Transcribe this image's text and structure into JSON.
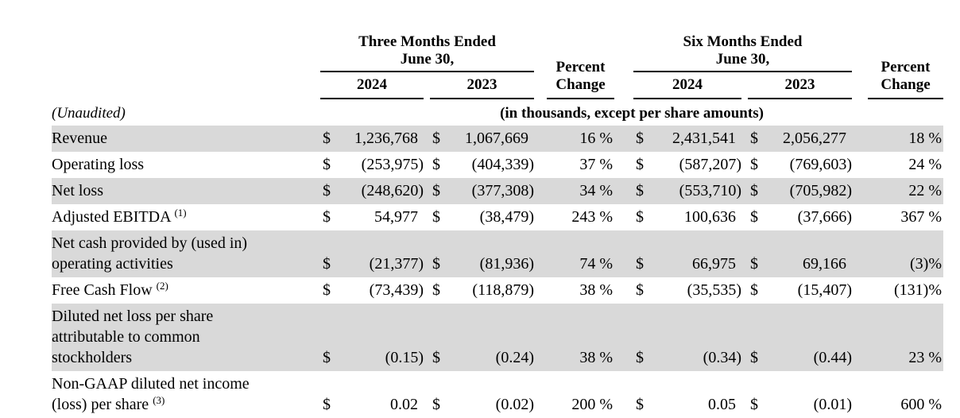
{
  "currency": "$",
  "meta": {
    "unaudited": "(Unaudited)",
    "units_note": "(in thousands, except per share amounts)"
  },
  "header": {
    "groups": [
      {
        "title": "Three Months Ended\nJune 30,",
        "year1": "2024",
        "year2": "2023",
        "pct": "Percent\nChange"
      },
      {
        "title": "Six Months Ended\nJune 30,",
        "year1": "2024",
        "year2": "2023",
        "pct": "Percent\nChange"
      }
    ]
  },
  "rows": [
    {
      "label": "Revenue",
      "sup": "",
      "tm2024": "1,236,768",
      "tm2023": "1,067,669",
      "tmpct": "16 %",
      "sm2024": "2,431,541",
      "sm2023": "2,056,277",
      "smpct": "18 %"
    },
    {
      "label": "Operating loss",
      "sup": "",
      "tm2024": "(253,975)",
      "tm2023": "(404,339)",
      "tmpct": "37 %",
      "sm2024": "(587,207)",
      "sm2023": "(769,603)",
      "smpct": "24 %"
    },
    {
      "label": "Net loss",
      "sup": "",
      "tm2024": "(248,620)",
      "tm2023": "(377,308)",
      "tmpct": "34 %",
      "sm2024": "(553,710)",
      "sm2023": "(705,982)",
      "smpct": "22 %"
    },
    {
      "label": "Adjusted EBITDA",
      "sup": "(1)",
      "tm2024": "54,977",
      "tm2023": "(38,479)",
      "tmpct": "243 %",
      "sm2024": "100,636",
      "sm2023": "(37,666)",
      "smpct": "367 %"
    },
    {
      "label": "Net cash provided by (used in)\noperating activities",
      "sup": "",
      "tm2024": "(21,377)",
      "tm2023": "(81,936)",
      "tmpct": "74 %",
      "sm2024": "66,975",
      "sm2023": "69,166",
      "smpct": "(3)%"
    },
    {
      "label": "Free Cash Flow",
      "sup": "(2)",
      "tm2024": "(73,439)",
      "tm2023": "(118,879)",
      "tmpct": "38 %",
      "sm2024": "(35,535)",
      "sm2023": "(15,407)",
      "smpct": "(131)%"
    },
    {
      "label": "Diluted net loss per share\nattributable to common\nstockholders",
      "sup": "",
      "tm2024": "(0.15)",
      "tm2023": "(0.24)",
      "tmpct": "38 %",
      "sm2024": "(0.34)",
      "sm2023": "(0.44)",
      "smpct": "23 %"
    },
    {
      "label": "Non-GAAP diluted net income\n(loss) per share",
      "sup": "(3)",
      "tm2024": "0.02",
      "tm2023": "(0.02)",
      "tmpct": "200 %",
      "sm2024": "0.05",
      "sm2023": "(0.01)",
      "smpct": "600 %"
    }
  ]
}
